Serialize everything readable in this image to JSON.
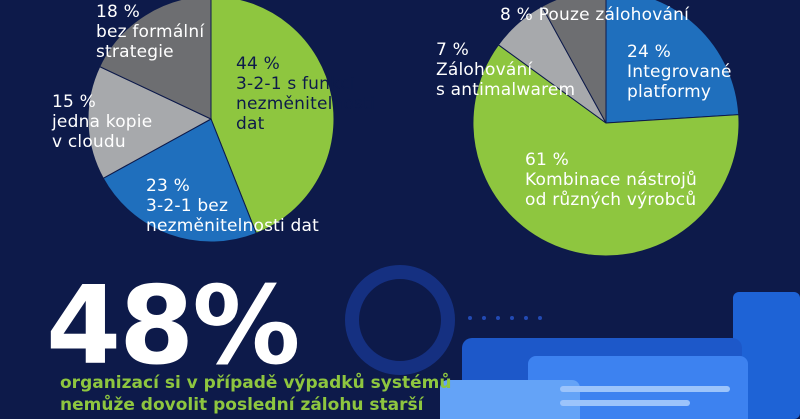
{
  "colors": {
    "background": "#0d1a4a",
    "green": "#8ec63f",
    "blue": "#1f6fbd",
    "light_gray": "#a7a9ac",
    "dark_gray": "#6d6e71",
    "deco_blue": "#1e63d6"
  },
  "chart_data": [
    {
      "type": "pie",
      "slices": [
        {
          "value": 44,
          "label": "44 %\n3-2-1 s funkcí\nnezměnitelnosti\ndat",
          "color": "#8ec63f"
        },
        {
          "value": 23,
          "label": "23 %\n3-2-1 bez\nnezměnitelnosti dat",
          "color": "#1f6fbd"
        },
        {
          "value": 15,
          "label": "15 %\njedna kopie\nv cloudu",
          "color": "#a7a9ac"
        },
        {
          "value": 18,
          "label": "18 %\nbez formální\nstrategie",
          "color": "#6d6e71"
        }
      ]
    },
    {
      "type": "pie",
      "slices": [
        {
          "value": 24,
          "label": "24 %\nIntegrované\nplatformy",
          "color": "#1f6fbd"
        },
        {
          "value": 61,
          "label": "61 %\nKombinace nástrojů\nod různých výrobců",
          "color": "#8ec63f"
        },
        {
          "value": 7,
          "label": "7 %\nZálohování\ns antimalwarem",
          "color": "#a7a9ac"
        },
        {
          "value": 8,
          "label": "8 % Pouze zálohování",
          "color": "#6d6e71"
        }
      ]
    }
  ],
  "headline": {
    "value": "48%",
    "text": "organizací si v případě výpadků systémů\nnemůže dovolit poslední zálohu starší"
  }
}
